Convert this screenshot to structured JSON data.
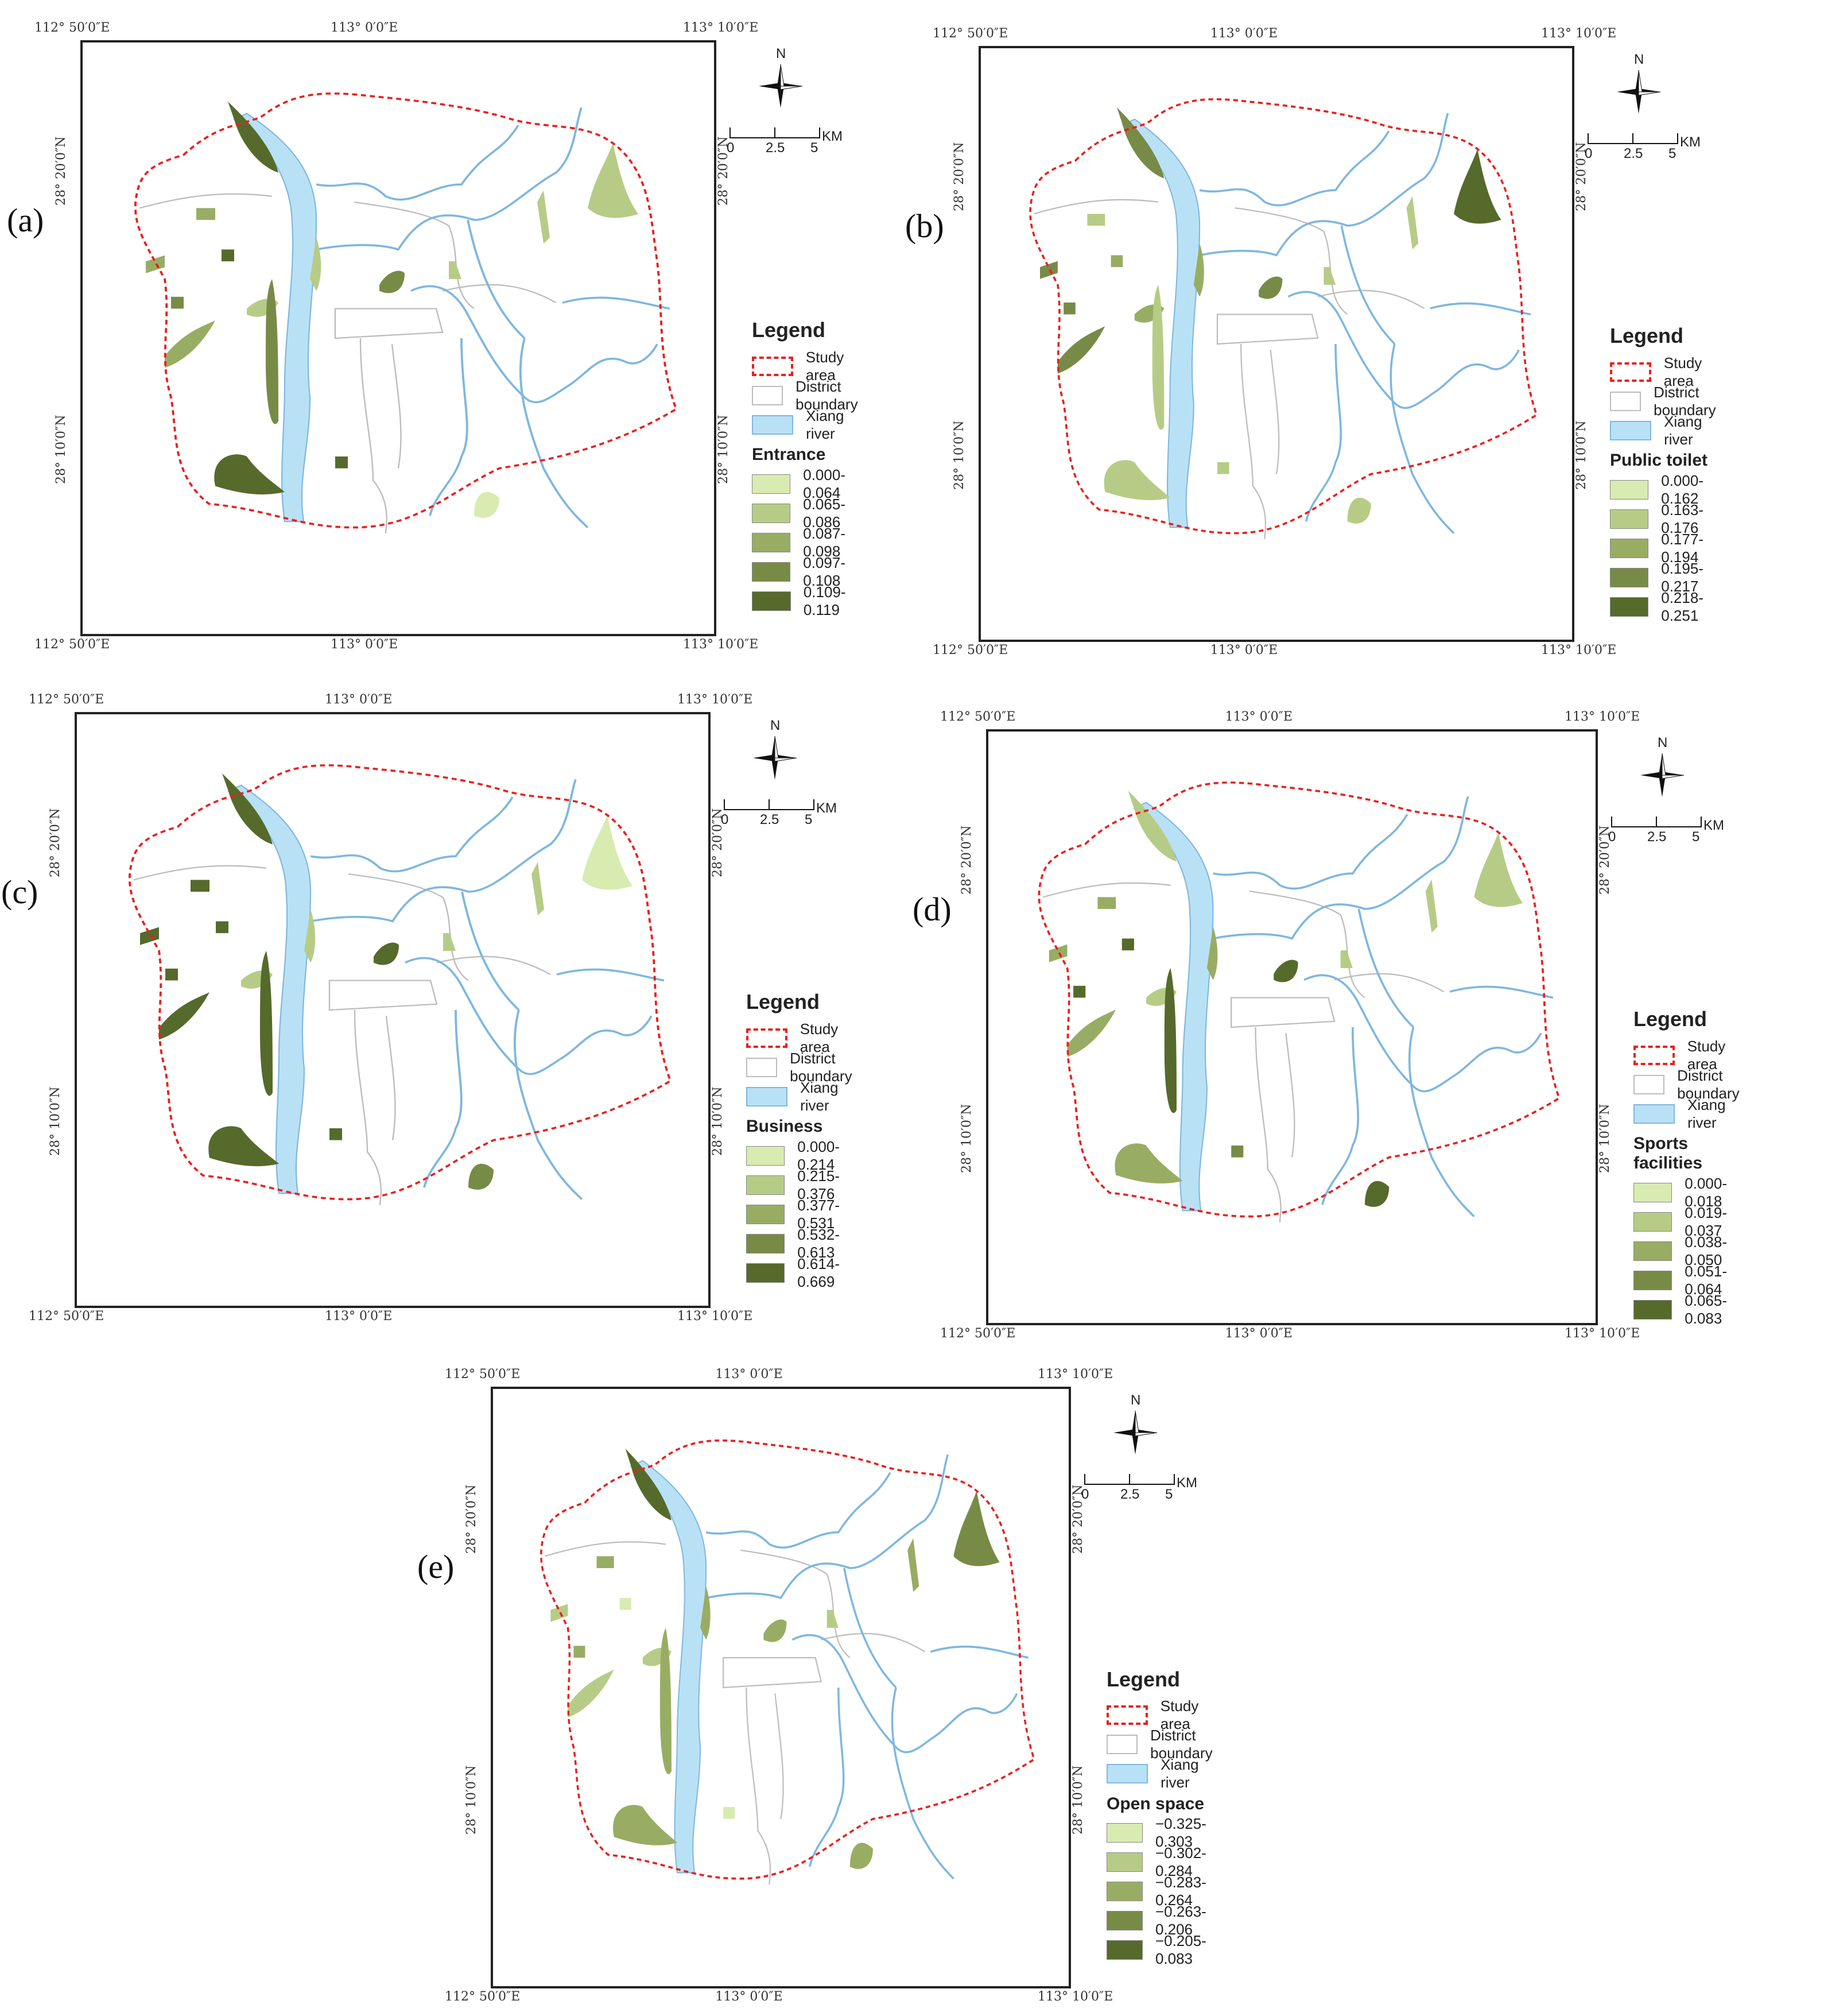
{
  "panels": [
    {
      "label": "(a)",
      "legend": {
        "title": "Legend",
        "study_area": "Study area",
        "district": "District boundary",
        "river": "Xiang river",
        "factor": "Entrance",
        "classes": [
          "0.000-0.064",
          "0.065-0.086",
          "0.087-0.098",
          "0.097-0.108",
          "0.109-0.119"
        ]
      },
      "top": [
        "112°  50′0″E",
        "113°  0′0″E",
        "113°  10′0″E"
      ],
      "bottom": [
        "112°  50′0″E",
        "113°  0′0″E",
        "113°  10′0″E"
      ],
      "left": [
        "28°  20′0″N",
        "28°  10′0″N"
      ],
      "right": [
        "28°  20′0″N",
        "28°  10′0″N"
      ],
      "fills": [
        5,
        2,
        3,
        2,
        4,
        2,
        5,
        4,
        2,
        1,
        3,
        3,
        5,
        4,
        2,
        5
      ]
    },
    {
      "label": "(b)",
      "legend": {
        "title": "Legend",
        "study_area": "Study area",
        "district": "District boundary",
        "river": "Xiang river",
        "factor": "Public toilet",
        "classes": [
          "0.000-0.162",
          "0.163-0.176",
          "0.177-0.194",
          "0.195-0.217",
          "0.218-0.251"
        ]
      },
      "top": [
        "112°  50′0″E",
        "113°  0′0″E",
        "113°  10′0″E"
      ],
      "bottom": [
        "112°  50′0″E",
        "113°  0′0″E",
        "113°  10′0″E"
      ],
      "left": [
        "28°  20′0″N",
        "28°  10′0″N"
      ],
      "right": [
        "28°  20′0″N",
        "28°  10′0″N"
      ],
      "fills": [
        4,
        5,
        4,
        3,
        4,
        2,
        2,
        2,
        3,
        2,
        4,
        2,
        3,
        4,
        2,
        2
      ]
    },
    {
      "label": "(c)",
      "legend": {
        "title": "Legend",
        "study_area": "Study area",
        "district": "District boundary",
        "river": "Xiang river",
        "factor": "Business",
        "classes": [
          "0.000-0.214",
          "0.215-0.376",
          "0.377-0.531",
          "0.532-0.613",
          "0.614-0.669"
        ]
      },
      "top": [
        "112°  50′0″E",
        "113°  0′0″E",
        "113°  10′0″E"
      ],
      "bottom": [
        "112°  50′0″E",
        "113°  0′0″E",
        "113°  10′0″E"
      ],
      "left": [
        "28°  20′0″N",
        "28°  10′0″N"
      ],
      "right": [
        "28°  20′0″N",
        "28°  10′0″N"
      ],
      "fills": [
        5,
        1,
        5,
        2,
        5,
        2,
        5,
        5,
        2,
        4,
        5,
        5,
        5,
        5,
        2,
        5
      ]
    },
    {
      "label": "(d)",
      "legend": {
        "title": "Legend",
        "study_area": "Study area",
        "district": "District boundary",
        "river": "Xiang river",
        "factor": "Sports facilities",
        "classes": [
          "0.000-0.018",
          "0.019-0.037",
          "0.038-0.050",
          "0.051-0.064",
          "0.065-0.083"
        ]
      },
      "top": [
        "112°  50′0″E",
        "113°  0′0″E",
        "113°  10′0″E"
      ],
      "bottom": [
        "112°  50′0″E",
        "113°  0′0″E",
        "113°  10′0″E"
      ],
      "left": [
        "28°  20′0″N",
        "28°  10′0″N"
      ],
      "right": [
        "28°  20′0″N",
        "28°  10′0″N"
      ],
      "fills": [
        2,
        2,
        3,
        2,
        5,
        2,
        3,
        5,
        3,
        5,
        3,
        3,
        5,
        5,
        2,
        4
      ]
    },
    {
      "label": "(e)",
      "legend": {
        "title": "Legend",
        "study_area": "Study area",
        "district": "District boundary",
        "river": "Xiang river",
        "factor": "Open space",
        "classes": [
          "−0.325-0.303",
          "−0.302-0.284",
          "−0.283-0.264",
          "−0.263-0.206",
          "−0.205-0.083"
        ]
      },
      "top": [
        "112°  50′0″E",
        "113°  0′0″E",
        "113°  10′0″E"
      ],
      "bottom": [
        "112°  50′0″E",
        "113°  0′0″E",
        "113°  10′0″E"
      ],
      "left": [
        "28°  20′0″N",
        "28°  10′0″N"
      ],
      "right": [
        "28°  20′0″N",
        "28°  10′0″N"
      ],
      "fills": [
        5,
        4,
        2,
        2,
        3,
        3,
        3,
        3,
        3,
        3,
        2,
        3,
        1,
        3,
        2,
        1
      ]
    }
  ],
  "north_label": "N",
  "scale": {
    "ticks": [
      "0",
      "2.5",
      "5"
    ],
    "unit": "KM"
  },
  "colors": {
    "classes": [
      "#d8ebb0",
      "#b6cc86",
      "#98ad63",
      "#778b46",
      "#566a2c"
    ],
    "river": "#b9e1f5",
    "river_edge": "#7fb7df",
    "study": "#e8201f",
    "district": "#bdbdbd"
  }
}
